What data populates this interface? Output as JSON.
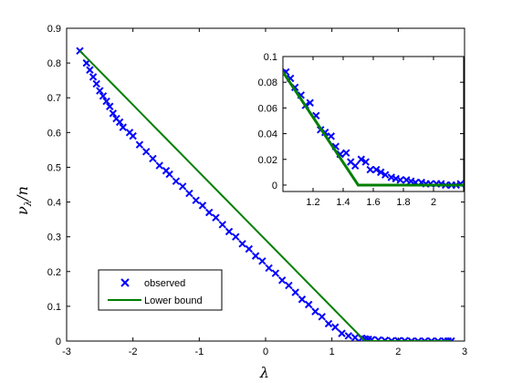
{
  "chart_data": [
    {
      "type": "scatter",
      "title": "",
      "xlabel": "λ",
      "ylabel": "ν_λ / n",
      "xlim": [
        -3,
        3
      ],
      "ylim": [
        0,
        0.9
      ],
      "xticks": [
        "-3",
        "-2",
        "-1",
        "0",
        "1",
        "2",
        "3"
      ],
      "yticks": [
        "0",
        "0.1",
        "0.2",
        "0.3",
        "0.4",
        "0.5",
        "0.6",
        "0.7",
        "0.8",
        "0.9"
      ],
      "grid": false,
      "legend_position": "bottom-left",
      "legend": [
        "observed",
        "Lower bound"
      ],
      "series": [
        {
          "name": "observed",
          "marker": "x",
          "color": "#0000ff",
          "x": [
            -2.8,
            -2.7,
            -2.65,
            -2.6,
            -2.55,
            -2.5,
            -2.45,
            -2.4,
            -2.35,
            -2.3,
            -2.25,
            -2.2,
            -2.15,
            -2.05,
            -2.0,
            -1.9,
            -1.8,
            -1.7,
            -1.6,
            -1.5,
            -1.45,
            -1.35,
            -1.25,
            -1.15,
            -1.05,
            -0.95,
            -0.85,
            -0.75,
            -0.65,
            -0.55,
            -0.45,
            -0.35,
            -0.25,
            -0.15,
            -0.05,
            0.05,
            0.15,
            0.25,
            0.35,
            0.45,
            0.55,
            0.65,
            0.75,
            0.85,
            0.95,
            1.05,
            1.15,
            1.25,
            1.35,
            1.45,
            1.5,
            1.55,
            1.6,
            1.7,
            1.8,
            1.9,
            2.0,
            2.1,
            2.2,
            2.3,
            2.4,
            2.5,
            2.6,
            2.7,
            2.75,
            2.8
          ],
          "y": [
            0.835,
            0.8,
            0.78,
            0.76,
            0.74,
            0.72,
            0.705,
            0.69,
            0.675,
            0.655,
            0.64,
            0.63,
            0.615,
            0.6,
            0.59,
            0.565,
            0.545,
            0.525,
            0.505,
            0.49,
            0.48,
            0.46,
            0.445,
            0.425,
            0.405,
            0.39,
            0.37,
            0.355,
            0.335,
            0.315,
            0.3,
            0.28,
            0.265,
            0.245,
            0.23,
            0.21,
            0.195,
            0.175,
            0.16,
            0.14,
            0.12,
            0.105,
            0.085,
            0.07,
            0.05,
            0.04,
            0.022,
            0.015,
            0.01,
            0.008,
            0.006,
            0.005,
            0.004,
            0.003,
            0.002,
            0.001,
            0.001,
            0.001,
            0.0,
            0.0,
            0.0,
            0.0,
            0.0,
            0.0,
            0.0,
            0.0
          ]
        },
        {
          "name": "Lower bound",
          "type": "line",
          "color": "#007f00",
          "x": [
            -2.8,
            1.5,
            2.8
          ],
          "y": [
            0.835,
            0.0,
            0.0
          ]
        }
      ]
    },
    {
      "type": "scatter",
      "title": "",
      "xlabel": "",
      "ylabel": "",
      "xlim": [
        1.0,
        2.2
      ],
      "ylim": [
        -0.005,
        0.1
      ],
      "xticks": [
        "1.2",
        "1.4",
        "1.6",
        "1.8",
        "2"
      ],
      "yticks": [
        "0",
        "0.02",
        "0.04",
        "0.06",
        "0.08",
        "0.1"
      ],
      "grid": false,
      "series": [
        {
          "name": "observed",
          "marker": "x",
          "color": "#0000ff",
          "x": [
            1.0,
            1.02,
            1.05,
            1.08,
            1.12,
            1.15,
            1.18,
            1.22,
            1.25,
            1.28,
            1.32,
            1.35,
            1.38,
            1.42,
            1.45,
            1.48,
            1.52,
            1.55,
            1.58,
            1.62,
            1.65,
            1.68,
            1.72,
            1.75,
            1.78,
            1.82,
            1.85,
            1.88,
            1.92,
            1.95,
            1.98,
            2.02,
            2.05,
            2.08,
            2.12,
            2.15,
            2.18
          ],
          "y": [
            0.087,
            0.088,
            0.083,
            0.076,
            0.07,
            0.062,
            0.064,
            0.054,
            0.043,
            0.041,
            0.038,
            0.03,
            0.024,
            0.025,
            0.018,
            0.015,
            0.02,
            0.018,
            0.012,
            0.012,
            0.01,
            0.008,
            0.006,
            0.005,
            0.004,
            0.004,
            0.003,
            0.002,
            0.002,
            0.001,
            0.001,
            0.001,
            0.001,
            0.0,
            0.0,
            0.0,
            0.001
          ]
        },
        {
          "name": "Lower bound",
          "type": "line",
          "color": "#007f00",
          "x": [
            1.0,
            1.5,
            2.2
          ],
          "y": [
            0.088,
            0.0,
            0.0
          ]
        }
      ]
    }
  ]
}
